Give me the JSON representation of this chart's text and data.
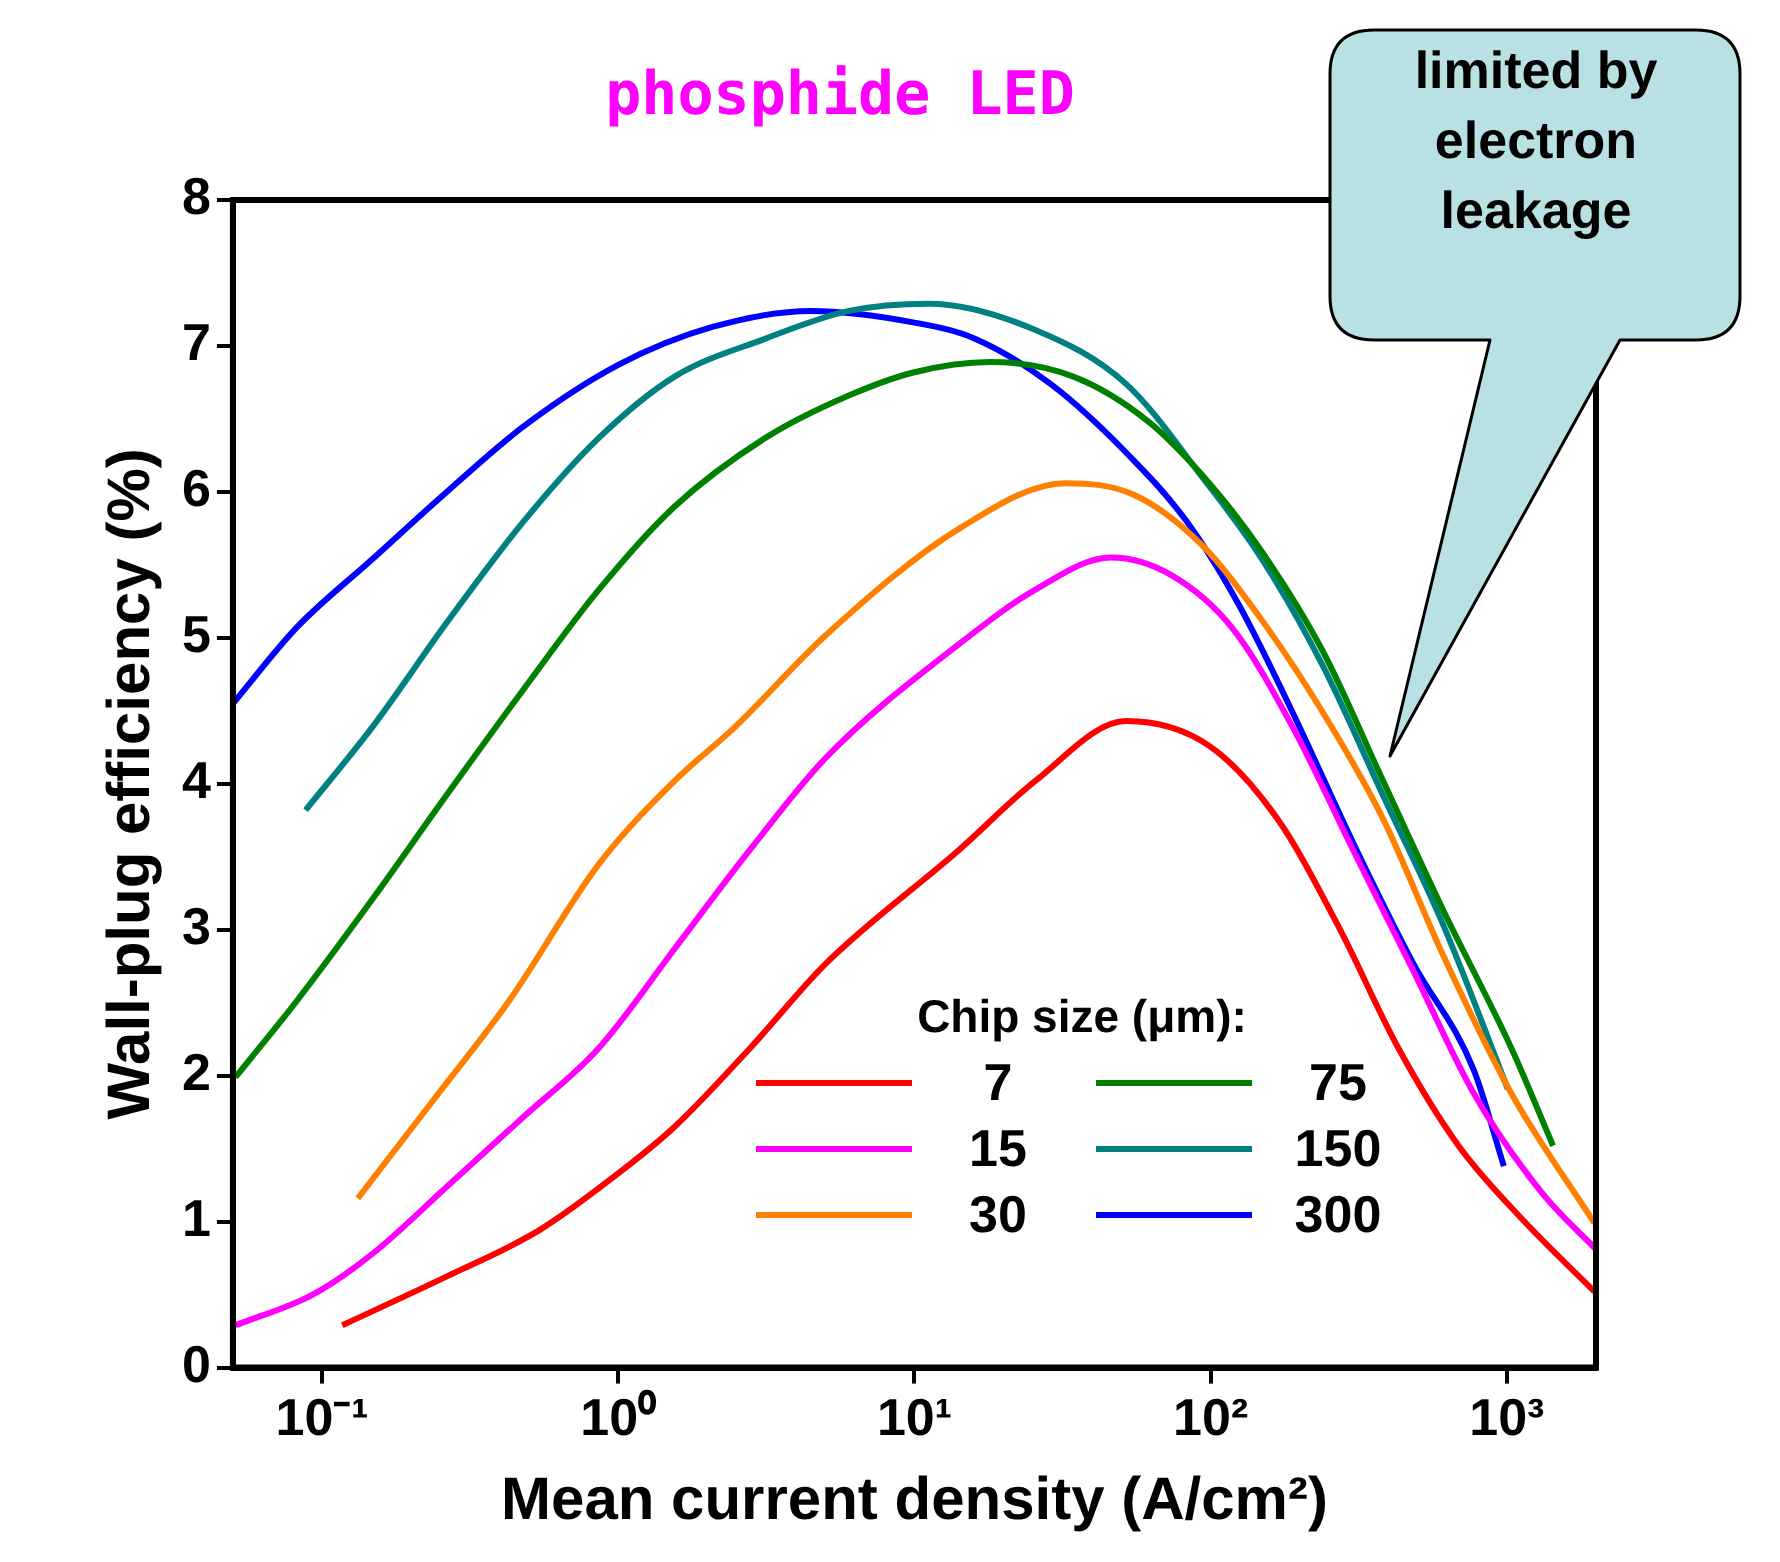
{
  "chart_data": {
    "type": "line",
    "title": "phosphide LED",
    "xlabel": "Mean current density (A/cm²)",
    "ylabel": "Wall-plug efficiency (%)",
    "legend_title": "Chip size (μm):",
    "legend": "bottom right",
    "log": "x",
    "grid": false,
    "xlim": [
      0.05,
      2000
    ],
    "xticks": [
      {
        "value": 0.1,
        "label": "10⁻¹"
      },
      {
        "value": 1,
        "label": "10⁰"
      },
      {
        "value": 10,
        "label": "10¹"
      },
      {
        "value": 100,
        "label": "10²"
      },
      {
        "value": 1000,
        "label": "10³"
      }
    ],
    "ylim": [
      0,
      8
    ],
    "yticks": [
      0,
      1,
      2,
      3,
      4,
      5,
      6,
      7,
      8
    ],
    "annotations": [
      "limited by electron leakage"
    ],
    "series": [
      {
        "name": "7",
        "color": "#ff0000",
        "x": [
          0.117,
          0.267,
          0.54,
          0.97,
          1.55,
          2.79,
          5.03,
          14.2,
          25.6,
          51.8,
          98.9,
          168,
          269,
          430,
          687,
          1099,
          1977
        ],
        "values": [
          0.29,
          0.63,
          0.94,
          1.31,
          1.65,
          2.19,
          2.77,
          3.55,
          4.02,
          4.43,
          4.26,
          3.76,
          3.03,
          2.19,
          1.52,
          1.04,
          0.52
        ]
      },
      {
        "name": "15",
        "color": "#ff00ff",
        "x": [
          0.051,
          0.093,
          0.148,
          0.267,
          0.48,
          0.86,
          1.55,
          2.79,
          5.03,
          14.2,
          25.6,
          46,
          73.6,
          118,
          189,
          302,
          483,
          773,
          1310,
          2000
        ],
        "values": [
          0.29,
          0.5,
          0.78,
          1.25,
          1.72,
          2.19,
          2.87,
          3.55,
          4.18,
          4.96,
          5.33,
          5.55,
          5.43,
          5.07,
          4.39,
          3.55,
          2.72,
          1.88,
          1.2,
          0.81
        ]
      },
      {
        "name": "30",
        "color": "#ff8000",
        "x": [
          0.132,
          0.237,
          0.427,
          0.86,
          1.55,
          2.48,
          5.03,
          14.2,
          32.4,
          55,
          93,
          149,
          239,
          382,
          611,
          1035,
          1977
        ],
        "values": [
          1.16,
          1.83,
          2.51,
          3.45,
          4.02,
          4.39,
          5.02,
          5.75,
          6.06,
          5.98,
          5.64,
          5.12,
          4.49,
          3.76,
          2.82,
          1.88,
          0.99
        ]
      },
      {
        "name": "75",
        "color": "#008000",
        "x": [
          0.051,
          0.082,
          0.148,
          0.267,
          0.48,
          0.86,
          1.55,
          3.14,
          6,
          10,
          18,
          34.4,
          61.8,
          98.9,
          149,
          239,
          382,
          611,
          1035,
          1432
        ],
        "values": [
          1.99,
          2.51,
          3.21,
          3.94,
          4.65,
          5.33,
          5.9,
          6.37,
          6.66,
          6.82,
          6.89,
          6.79,
          6.48,
          6.06,
          5.59,
          4.91,
          4.02,
          3.13,
          2.19,
          1.52
        ]
      },
      {
        "name": "150",
        "color": "#008080",
        "x": [
          0.088,
          0.148,
          0.267,
          0.48,
          0.86,
          1.55,
          3.14,
          6,
          11.2,
          25.6,
          51.8,
          93,
          149,
          239,
          382,
          611,
          1007
        ],
        "values": [
          3.82,
          4.39,
          5.12,
          5.8,
          6.37,
          6.79,
          7.05,
          7.24,
          7.29,
          7.11,
          6.74,
          6.11,
          5.54,
          4.81,
          3.92,
          3.03,
          1.91
        ]
      },
      {
        "name": "300",
        "color": "#0000ff",
        "x": [
          0.05,
          0.082,
          0.148,
          0.267,
          0.48,
          1,
          2.08,
          4.47,
          10,
          16,
          28.8,
          51.8,
          82.8,
          125,
          189,
          302,
          483,
          773,
          977
        ],
        "values": [
          4.55,
          5.07,
          5.54,
          6.01,
          6.45,
          6.87,
          7.13,
          7.24,
          7.16,
          7.05,
          6.74,
          6.27,
          5.8,
          5.22,
          4.49,
          3.6,
          2.77,
          2.04,
          1.38
        ]
      }
    ]
  }
}
